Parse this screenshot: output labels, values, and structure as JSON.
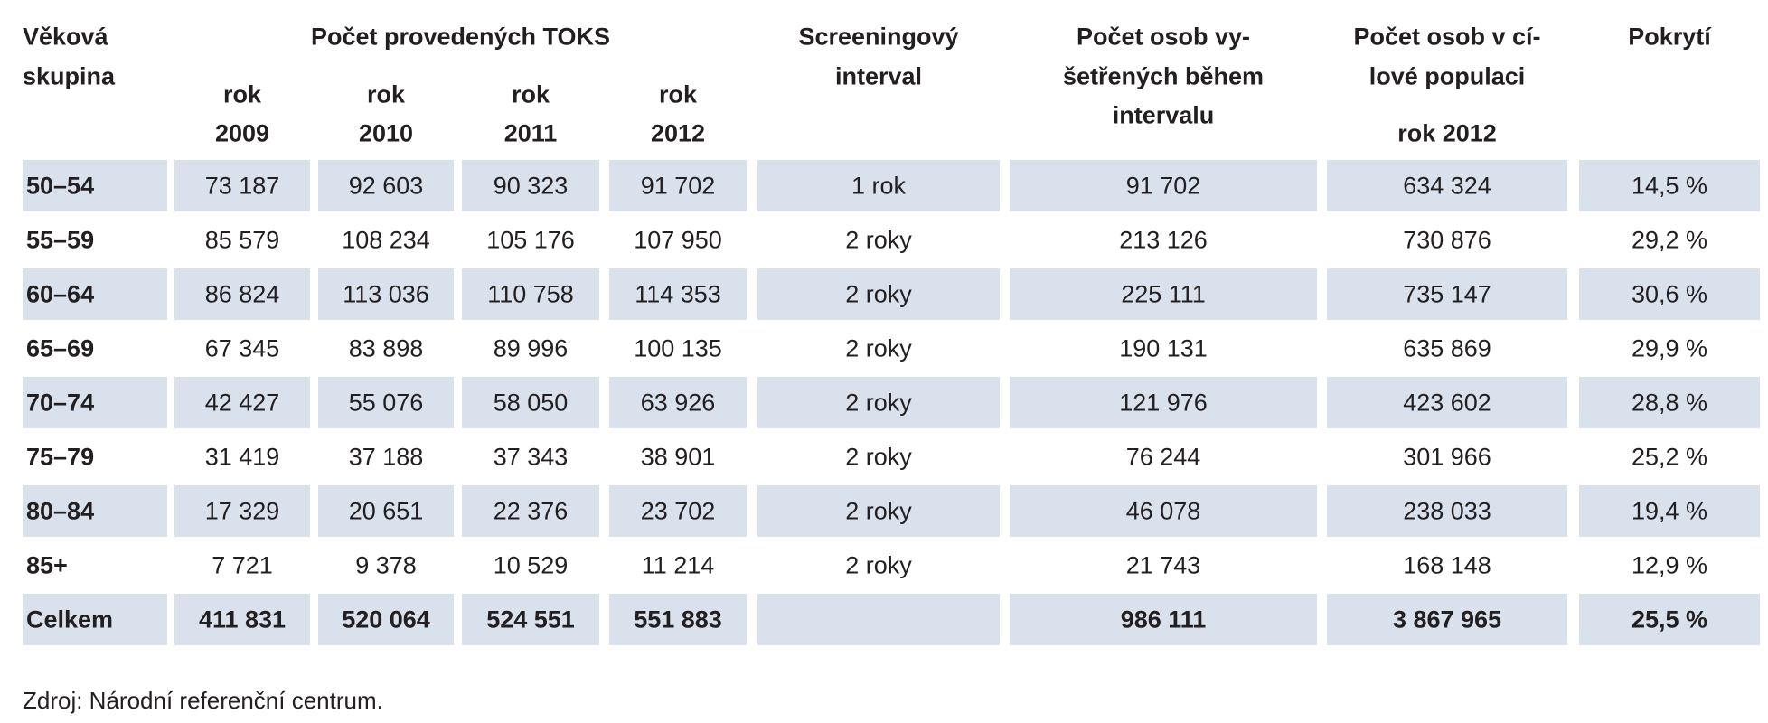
{
  "table": {
    "header": {
      "age": [
        "Věková",
        "skupina"
      ],
      "toks": "Počet provedených TOKS",
      "years": [
        [
          "rok",
          "2009"
        ],
        [
          "rok",
          "2010"
        ],
        [
          "rok",
          "2011"
        ],
        [
          "rok",
          "2012"
        ]
      ],
      "interval": [
        "Screeningový",
        "interval"
      ],
      "examined": [
        "Počet osob vy-",
        "šetřených během",
        "intervalu"
      ],
      "population": [
        "Počet osob v cí-",
        "lové populaci"
      ],
      "population_year": "rok 2012",
      "coverage": "Pokrytí"
    },
    "rows": [
      [
        "50–54",
        "73 187",
        "92 603",
        "90 323",
        "91 702",
        "1 rok",
        "91 702",
        "634 324",
        "14,5 %"
      ],
      [
        "55–59",
        "85 579",
        "108 234",
        "105 176",
        "107 950",
        "2 roky",
        "213 126",
        "730 876",
        "29,2 %"
      ],
      [
        "60–64",
        "86 824",
        "113 036",
        "110 758",
        "114 353",
        "2 roky",
        "225 111",
        "735 147",
        "30,6 %"
      ],
      [
        "65–69",
        "67 345",
        "83 898",
        "89 996",
        "100 135",
        "2 roky",
        "190 131",
        "635 869",
        "29,9 %"
      ],
      [
        "70–74",
        "42 427",
        "55 076",
        "58 050",
        "63 926",
        "2 roky",
        "121 976",
        "423 602",
        "28,8 %"
      ],
      [
        "75–79",
        "31 419",
        "37 188",
        "37 343",
        "38 901",
        "2 roky",
        "76 244",
        "301 966",
        "25,2 %"
      ],
      [
        "80–84",
        "17 329",
        "20 651",
        "22 376",
        "23 702",
        "2 roky",
        "46 078",
        "238 033",
        "19,4 %"
      ],
      [
        "85+",
        "7 721",
        "9 378",
        "10 529",
        "11 214",
        "2 roky",
        "21 743",
        "168 148",
        "12,9 %"
      ],
      [
        "Celkem",
        "411 831",
        "520 064",
        "524 551",
        "551 883",
        null,
        "986 111",
        "3 867 965",
        "25,5 %"
      ]
    ]
  },
  "footnote": "Zdroj: Národní referenční centrum."
}
